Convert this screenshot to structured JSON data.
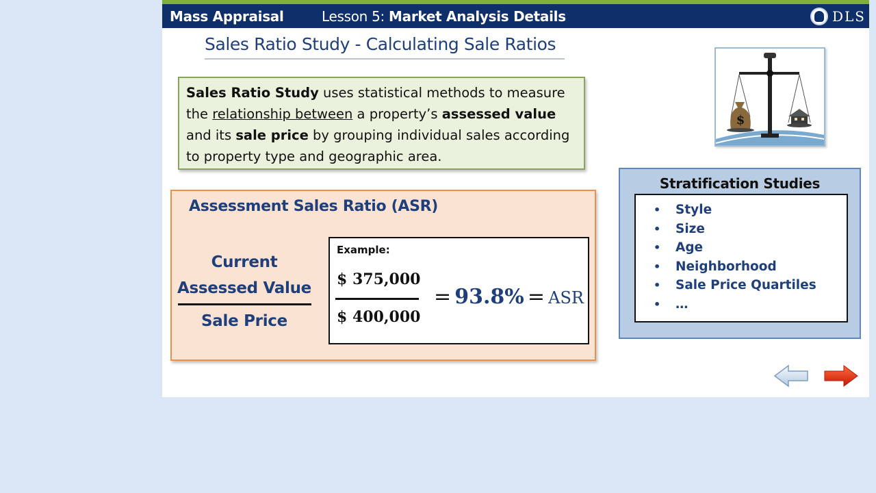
{
  "header": {
    "course": "Mass Appraisal",
    "lesson_prefix": "Lesson 5: ",
    "lesson_title": "Market Analysis Details",
    "logo_text": "DLS"
  },
  "title": "Sales Ratio Study - Calculating Sale Ratios",
  "definition": {
    "term": "Sales Ratio Study",
    "t1": " uses statistical methods to measure the ",
    "underlined": "relationship between",
    "t2": " a property’s ",
    "bold1": "assessed value",
    "t3": " and its ",
    "bold2": "sale price",
    "t4": " by grouping individual sales according to property type and geographic area."
  },
  "asr": {
    "title": "Assessment Sales Ratio (ASR)",
    "numerator_line1": "Current",
    "numerator_line2": "Assessed Value",
    "denominator": "Sale Price",
    "example": {
      "label": "Example:",
      "numerator": "$ 375,000",
      "denominator": "$ 400,000",
      "eq1": "=",
      "result": "93.8%",
      "eq2": "=",
      "result_label": "ASR"
    }
  },
  "stratification": {
    "title": "Stratification Studies",
    "items": [
      "Style",
      "Size",
      "Age",
      "Neighborhood",
      "Sale Price Quartiles",
      "…"
    ]
  },
  "icons": {
    "scale": "balance-scale-icon",
    "back": "arrow-left-icon",
    "next": "arrow-right-icon"
  },
  "colors": {
    "header_bg": "#0f2f6a",
    "accent_blue": "#1f3f7a",
    "next_arrow": "#e8280e"
  }
}
